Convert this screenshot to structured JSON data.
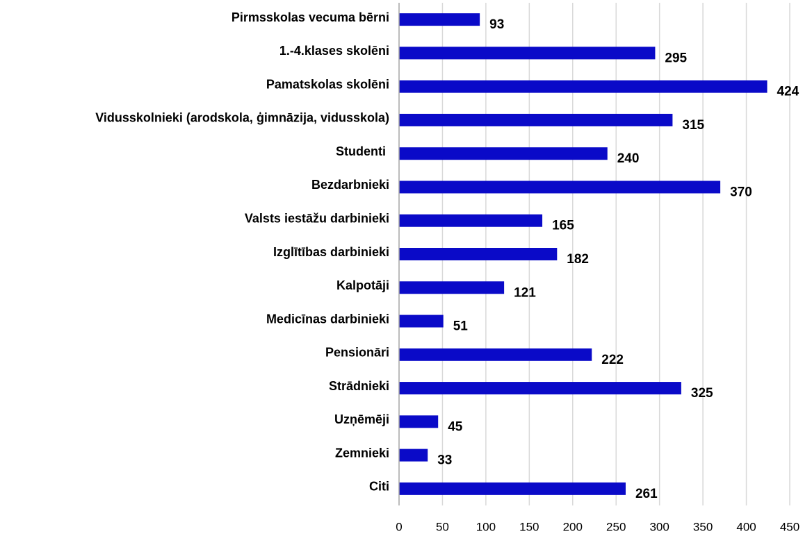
{
  "chart_data": {
    "type": "hbar",
    "categories": [
      "Pirmsskolas vecuma bērni",
      "1.-4.klases skolēni",
      "Pamatskolas skolēni",
      "Vidusskolnieki (arodskola, ģimnāzija, vidusskola)",
      "Studenti ",
      "Bezdarbnieki",
      "Valsts iestāžu darbinieki",
      "Izglītības darbinieki",
      "Kalpotāji",
      "Medicīnas darbinieki",
      "Pensionāri",
      "Strādnieki",
      "Uzņēmēji",
      "Zemnieki",
      "Citi"
    ],
    "values": [
      93,
      295,
      424,
      315,
      240,
      370,
      165,
      182,
      121,
      51,
      222,
      325,
      45,
      33,
      261
    ],
    "color": "#0a0ac8",
    "xlim": [
      0,
      450
    ],
    "xticks": [
      0,
      50,
      100,
      150,
      200,
      250,
      300,
      350,
      400,
      450
    ],
    "grid": true
  }
}
